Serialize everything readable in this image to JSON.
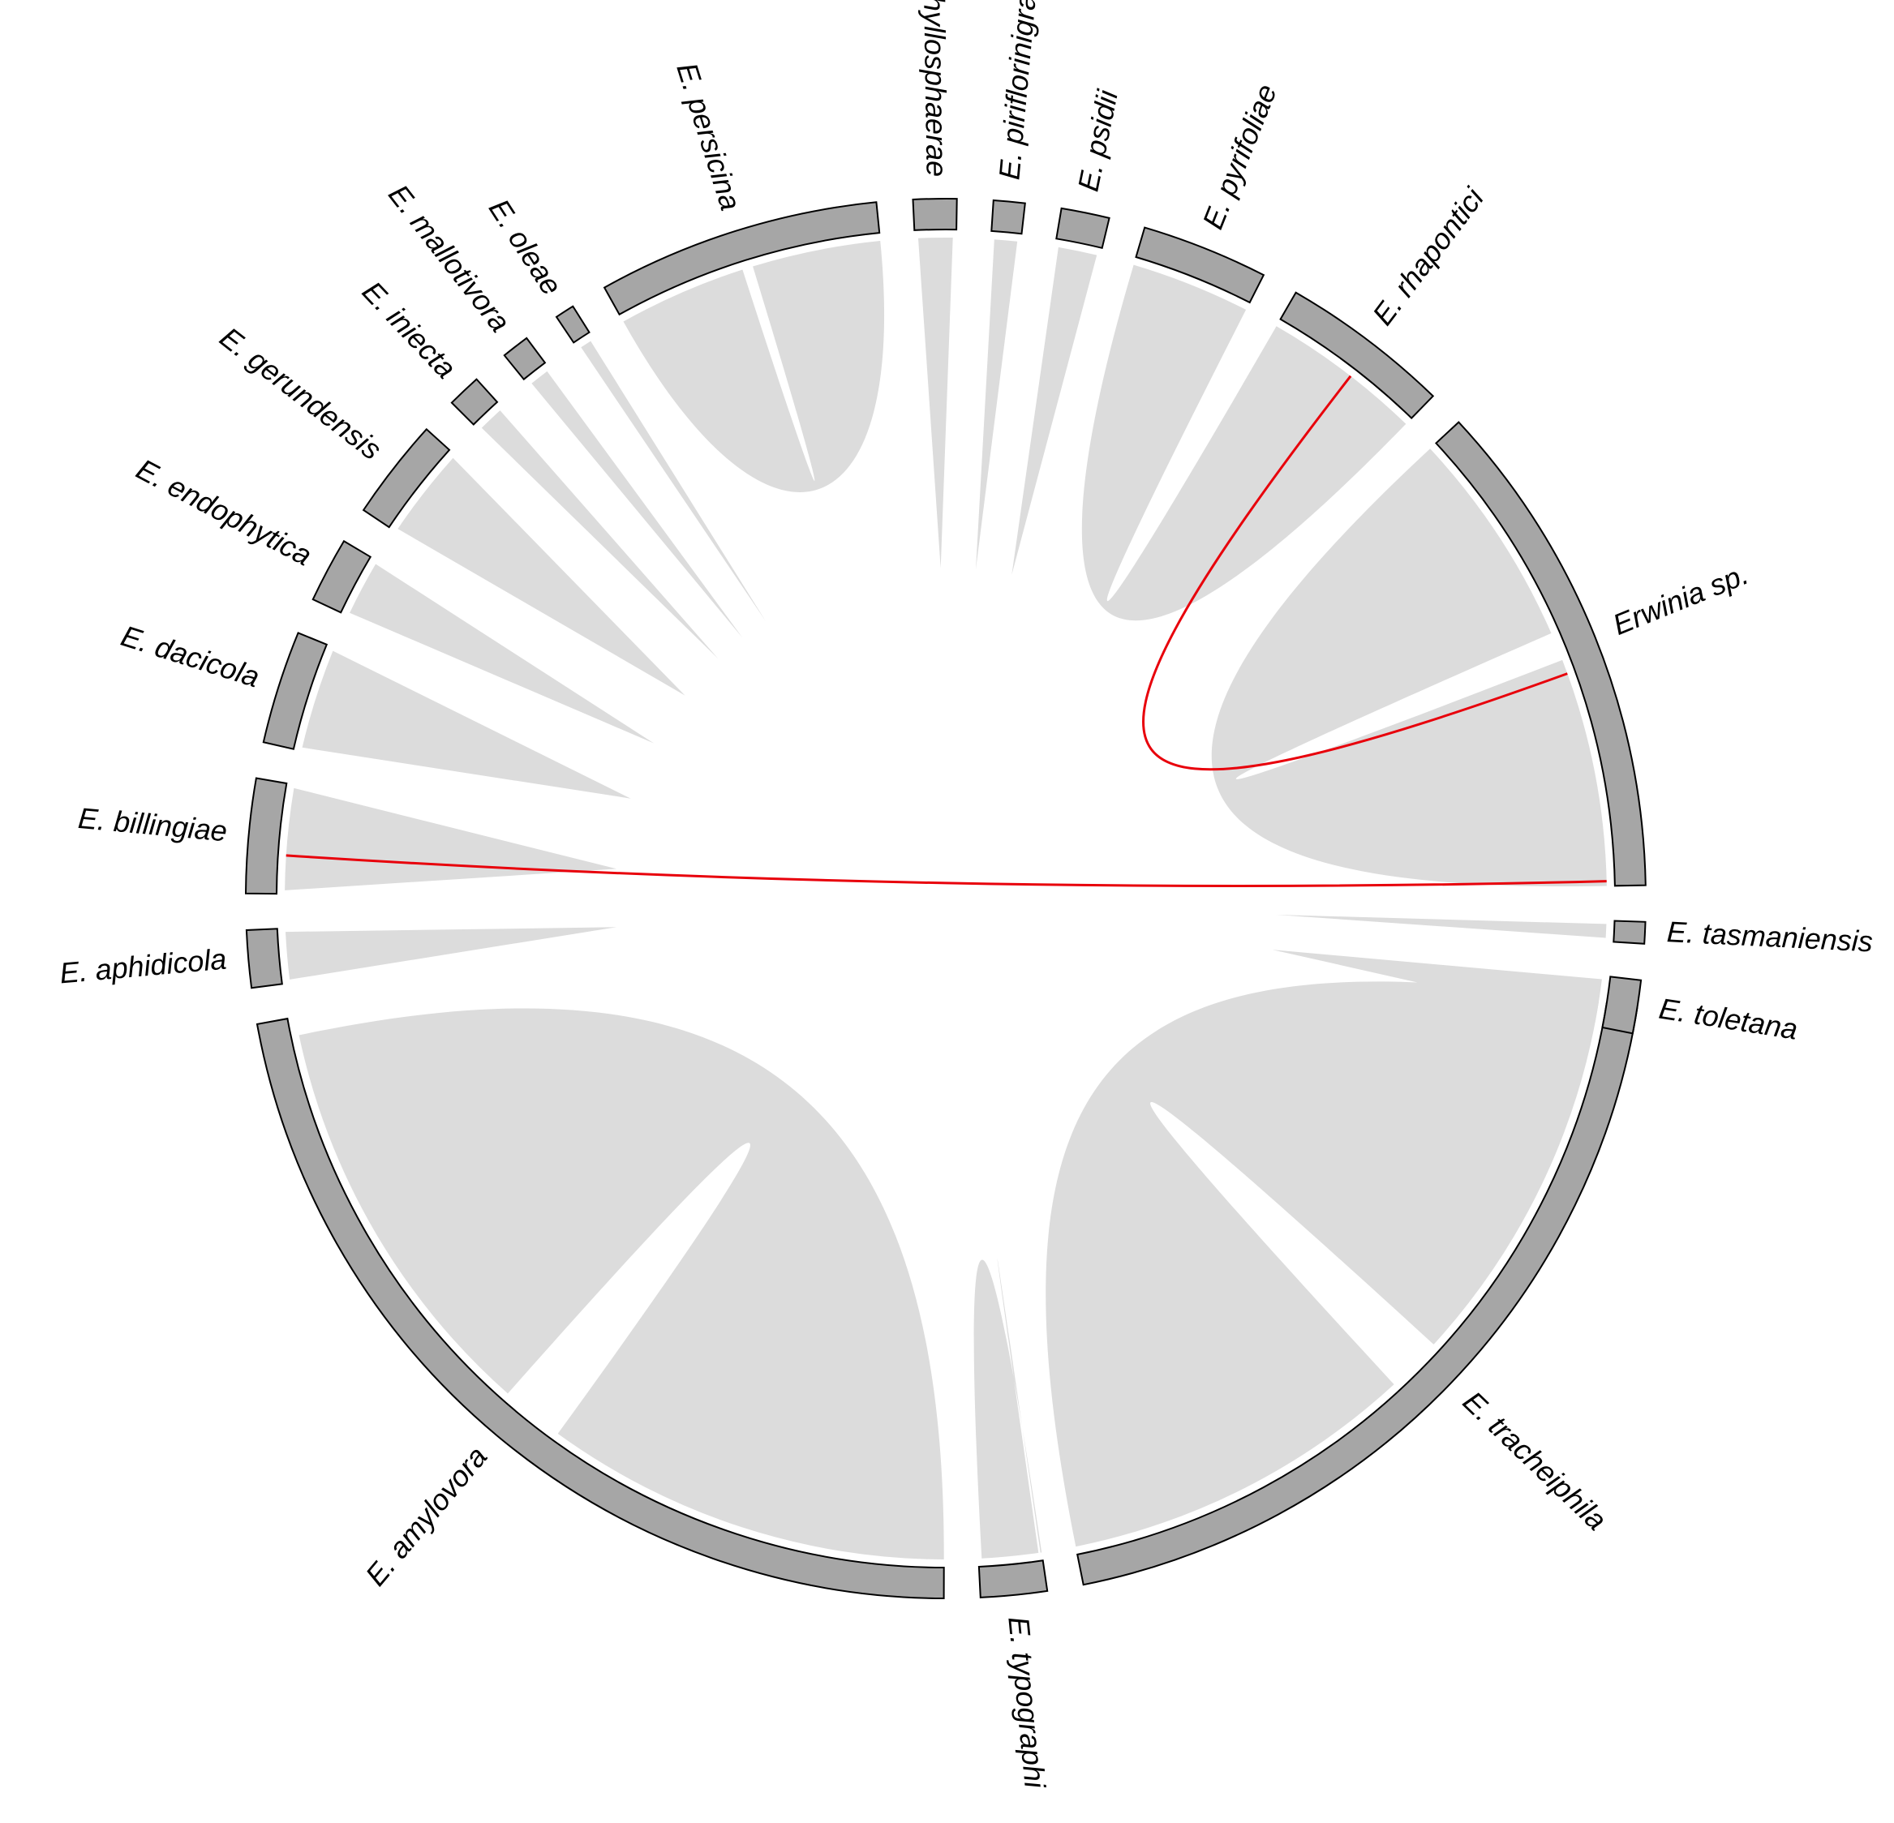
{
  "diagram": {
    "type": "chord",
    "sectors": [
      {
        "name": "E. tracheiphila",
        "span": 69.66
      },
      {
        "name": "E. typographi",
        "span": 5.5
      },
      {
        "name": "E. amylovora",
        "span": 79.5
      },
      {
        "name": "E. aphidicola",
        "span": 4.75
      },
      {
        "name": "E. billingiae",
        "span": 9.5
      },
      {
        "name": "E. dacicola",
        "span": 9.4
      },
      {
        "name": "E. endophytica",
        "span": 5.4
      },
      {
        "name": "E. gerundensis",
        "span": 8.4
      },
      {
        "name": "E. iniecta",
        "span": 2.8
      },
      {
        "name": "E. mallotivora",
        "span": 2.3
      },
      {
        "name": "E. oleae",
        "span": 1.6
      },
      {
        "name": "E. persicina",
        "span": 23.5
      },
      {
        "name": "E. phyllosphaerae",
        "span": 3.6
      },
      {
        "name": "E. piriflorinigrans",
        "span": 2.6
      },
      {
        "name": "E. psidii",
        "span": 4.0
      },
      {
        "name": "E. pyrifoliae",
        "span": 10.5
      },
      {
        "name": "E. rhapontici",
        "span": 14.1
      },
      {
        "name": "Erwinia sp.",
        "span": 41.8
      },
      {
        "name": "E. tasmaniensis",
        "span": 1.8
      },
      {
        "name": "E. toletana",
        "span": 4.4
      }
    ],
    "highlight_color": "#e8000b",
    "link_color": "#dcdcdc",
    "sector_color": "#a6a6a6"
  }
}
